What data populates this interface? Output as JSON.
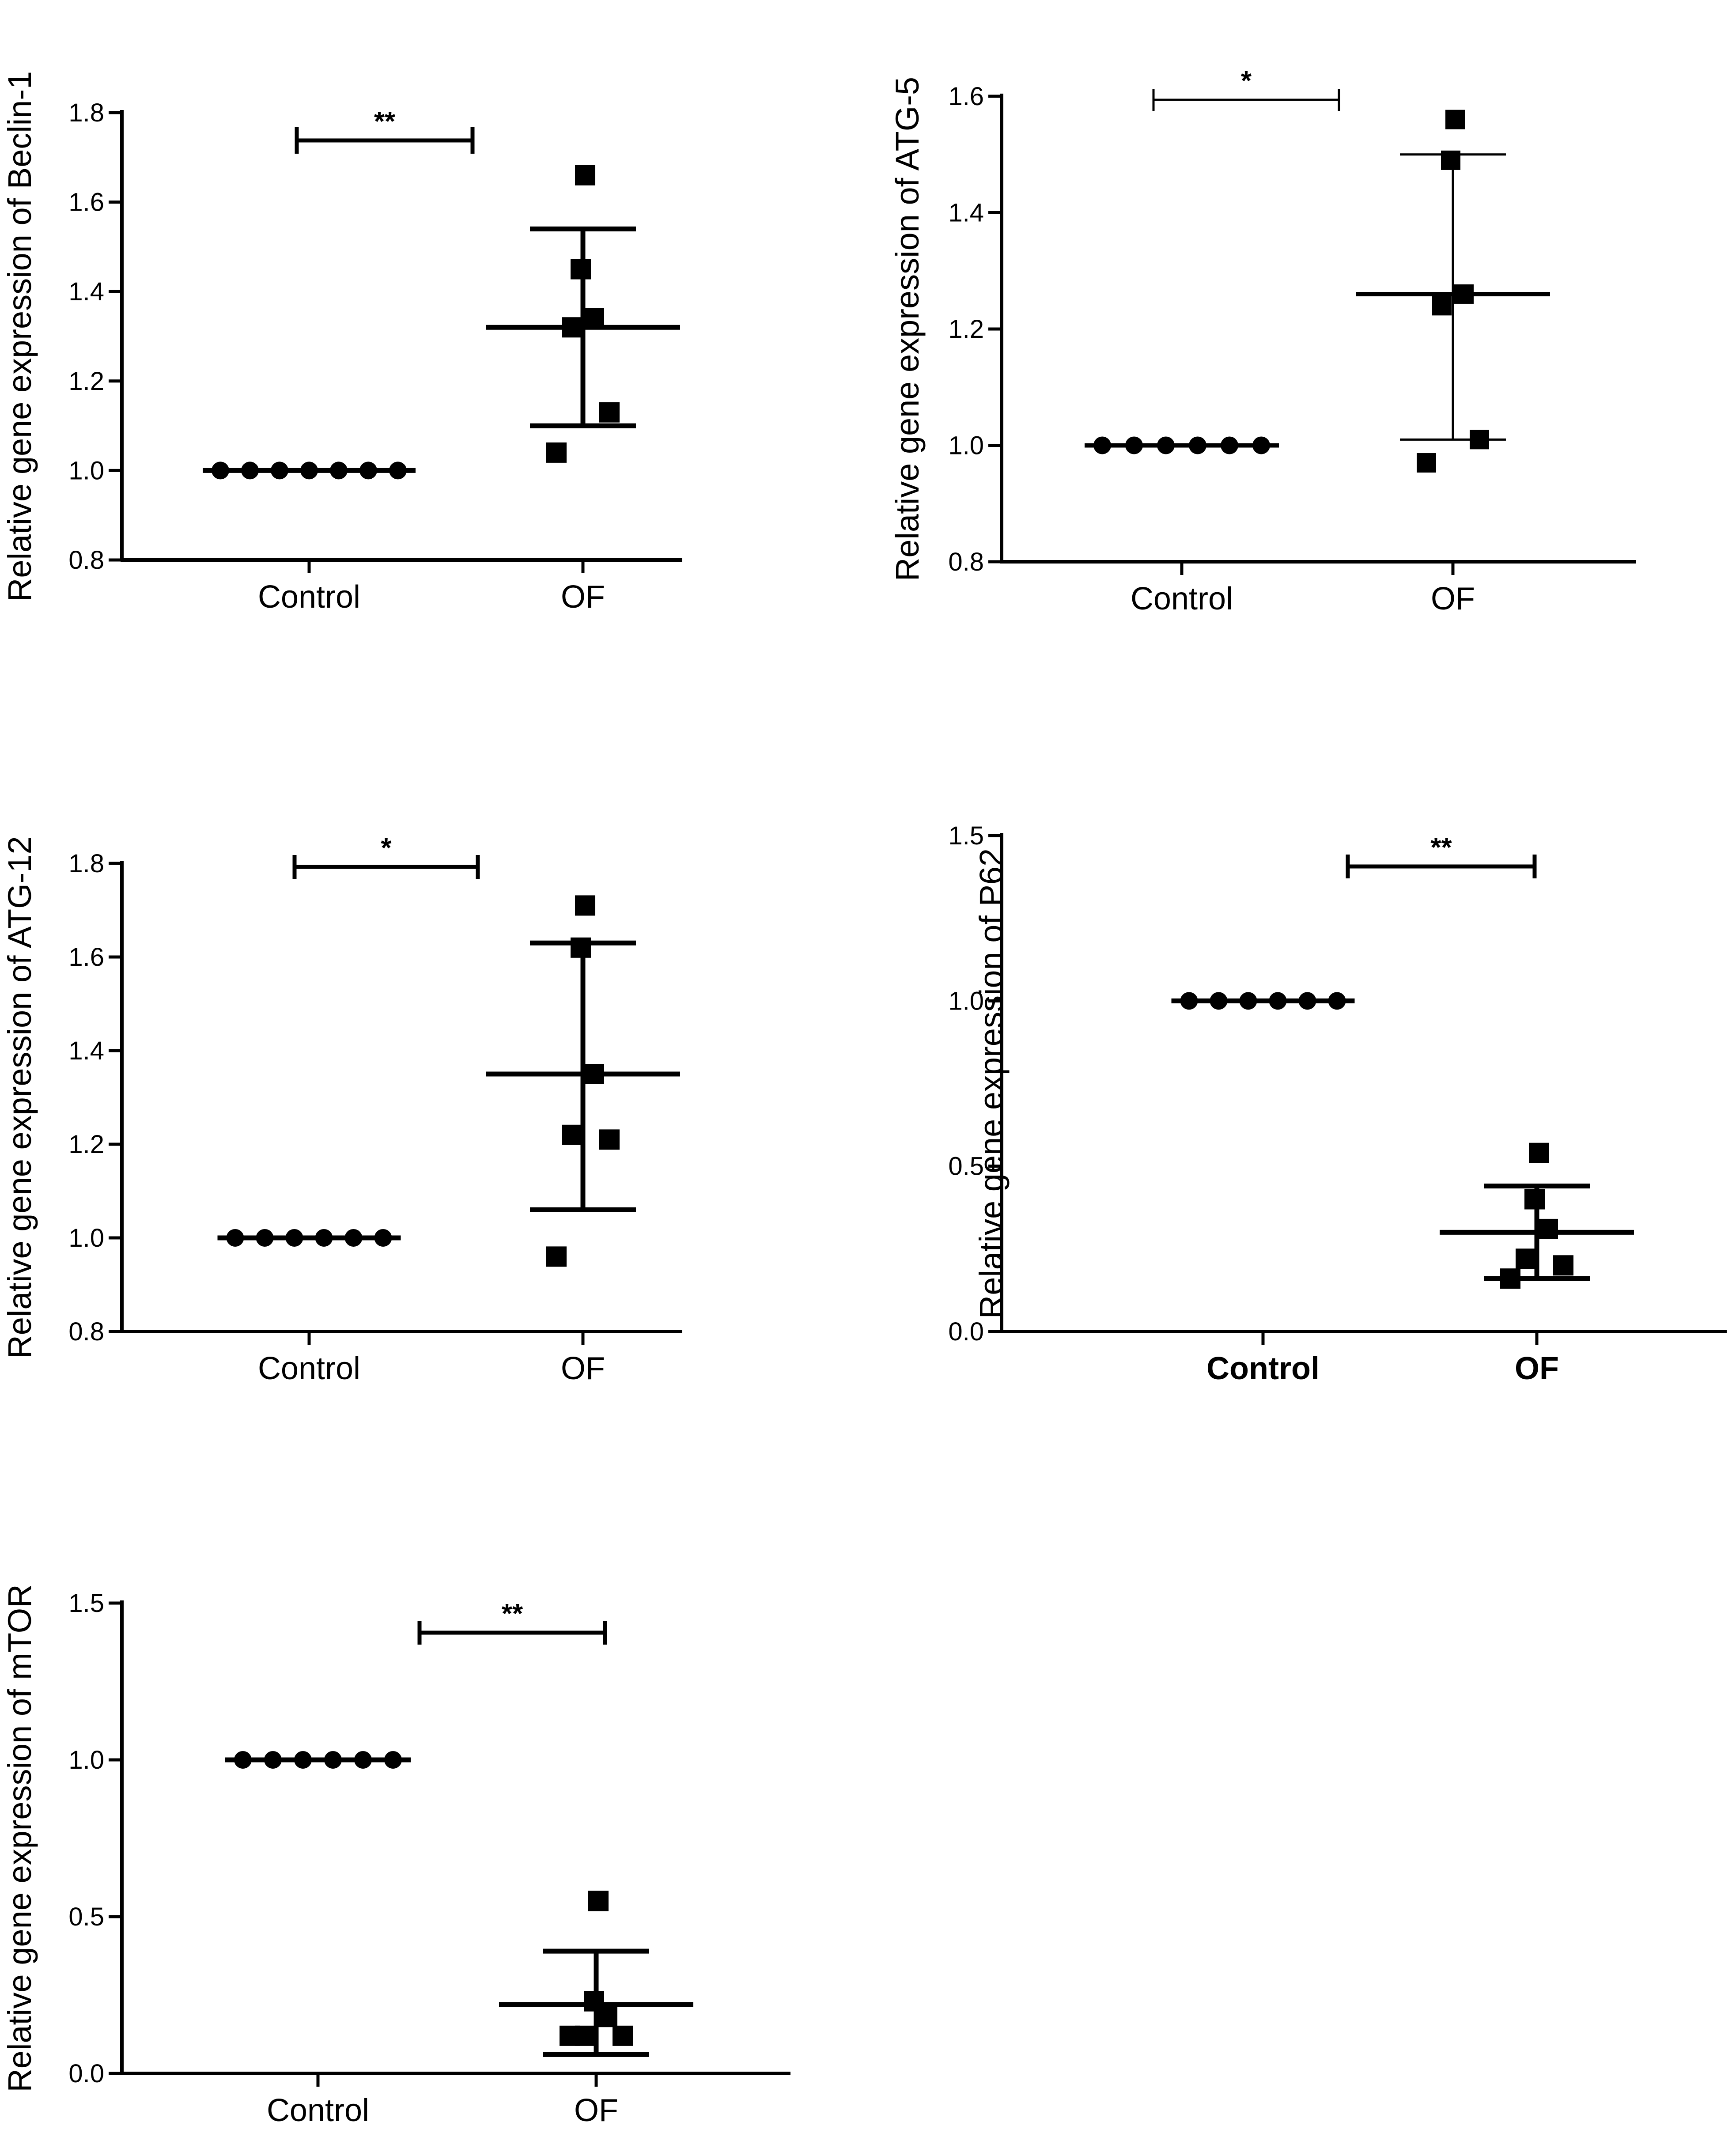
{
  "chart_data": [
    {
      "type": "scatter",
      "ylabel": "Relative gene expression of Beclin-1",
      "categories": [
        "Control",
        "OF"
      ],
      "ylim": [
        0.8,
        1.8
      ],
      "yticks": [
        0.8,
        1.0,
        1.2,
        1.4,
        1.6,
        1.8
      ],
      "ytick_labels": [
        "0.8",
        "1.0",
        "1.2",
        "1.4",
        "1.6",
        "1.8"
      ],
      "series": [
        {
          "name": "Control",
          "marker": "circle",
          "values": [
            1.0,
            1.0,
            1.0,
            1.0,
            1.0,
            1.0,
            1.0
          ],
          "mean": 1.0,
          "err_low": 1.0,
          "err_high": 1.0
        },
        {
          "name": "OF",
          "marker": "square",
          "values": [
            1.66,
            1.45,
            1.34,
            1.32,
            1.13,
            1.04
          ],
          "mean": 1.32,
          "err_low": 1.1,
          "err_high": 1.54
        }
      ],
      "significance": "**"
    },
    {
      "type": "scatter",
      "ylabel": "Relative gene expression of ATG-5",
      "categories": [
        "Control",
        "OF"
      ],
      "ylim": [
        0.8,
        1.6
      ],
      "yticks": [
        0.8,
        1.0,
        1.2,
        1.4,
        1.6
      ],
      "ytick_labels": [
        "0.8",
        "1.0",
        "1.2",
        "1.4",
        "1.6"
      ],
      "series": [
        {
          "name": "Control",
          "marker": "circle",
          "values": [
            1.0,
            1.0,
            1.0,
            1.0,
            1.0,
            1.0
          ],
          "mean": 1.0,
          "err_low": 1.0,
          "err_high": 1.0
        },
        {
          "name": "OF",
          "marker": "square",
          "values": [
            1.56,
            1.49,
            1.26,
            1.24,
            1.01,
            0.97
          ],
          "mean": 1.26,
          "err_low": 1.01,
          "err_high": 1.5
        }
      ],
      "significance": "*"
    },
    {
      "type": "scatter",
      "ylabel": "Relative gene expression of ATG-12",
      "categories": [
        "Control",
        "OF"
      ],
      "ylim": [
        0.8,
        1.8
      ],
      "yticks": [
        0.8,
        1.0,
        1.2,
        1.4,
        1.6,
        1.8
      ],
      "ytick_labels": [
        "0.8",
        "1.0",
        "1.2",
        "1.4",
        "1.6",
        "1.8"
      ],
      "series": [
        {
          "name": "Control",
          "marker": "circle",
          "values": [
            1.0,
            1.0,
            1.0,
            1.0,
            1.0,
            1.0
          ],
          "mean": 1.0,
          "err_low": 1.0,
          "err_high": 1.0
        },
        {
          "name": "OF",
          "marker": "square",
          "values": [
            1.71,
            1.62,
            1.35,
            1.22,
            1.21,
            0.96
          ],
          "mean": 1.35,
          "err_low": 1.06,
          "err_high": 1.63
        }
      ],
      "significance": "*"
    },
    {
      "type": "scatter",
      "ylabel": "Relative gene expression of P62",
      "categories": [
        "Control",
        "OF"
      ],
      "ylim": [
        0.0,
        1.5
      ],
      "yticks": [
        0.0,
        0.5,
        1.0,
        1.5
      ],
      "ytick_labels": [
        "0.0",
        "0.5",
        "1.0",
        "1.5"
      ],
      "series": [
        {
          "name": "Control",
          "marker": "circle",
          "values": [
            1.0,
            1.0,
            1.0,
            1.0,
            1.0,
            1.0
          ],
          "mean": 1.0,
          "err_low": 1.0,
          "err_high": 1.0
        },
        {
          "name": "OF",
          "marker": "square",
          "values": [
            0.54,
            0.4,
            0.31,
            0.22,
            0.2,
            0.16
          ],
          "mean": 0.3,
          "err_low": 0.16,
          "err_high": 0.44
        }
      ],
      "significance": "**"
    },
    {
      "type": "scatter",
      "ylabel": "Relative gene expression of mTOR",
      "categories": [
        "Control",
        "OF"
      ],
      "ylim": [
        0.0,
        1.5
      ],
      "yticks": [
        0.0,
        0.5,
        1.0,
        1.5
      ],
      "ytick_labels": [
        "0.0",
        "0.5",
        "1.0",
        "1.5"
      ],
      "series": [
        {
          "name": "Control",
          "marker": "circle",
          "values": [
            1.0,
            1.0,
            1.0,
            1.0,
            1.0,
            1.0
          ],
          "mean": 1.0,
          "err_low": 1.0,
          "err_high": 1.0
        },
        {
          "name": "OF",
          "marker": "square",
          "values": [
            0.55,
            0.23,
            0.18,
            0.12,
            0.12,
            0.12
          ],
          "mean": 0.22,
          "err_low": 0.06,
          "err_high": 0.39
        }
      ],
      "significance": "**"
    }
  ]
}
